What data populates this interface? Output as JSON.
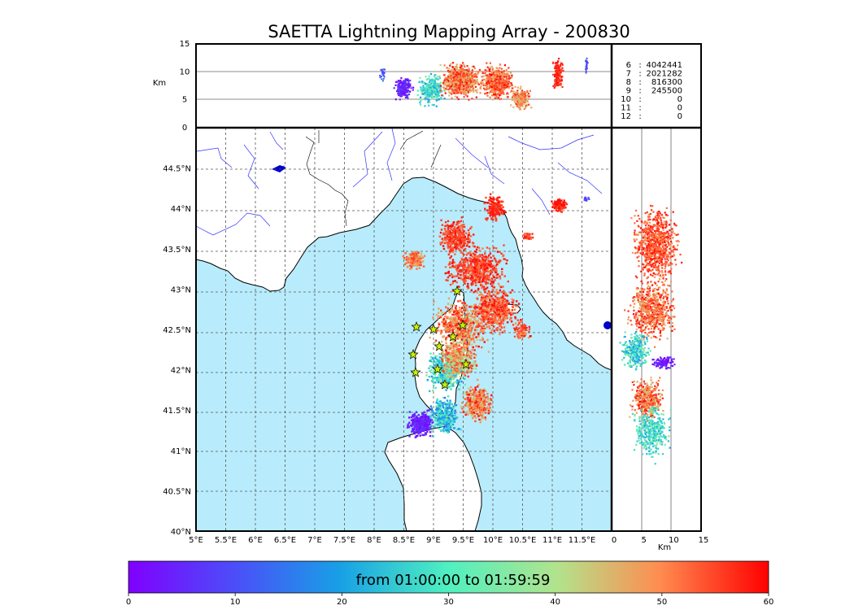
{
  "chart_data": {
    "type": "scatter",
    "title": "SAETTA Lightning Mapping Array - 200830",
    "map": {
      "x_ticks": [
        "5°E",
        "5.5°E",
        "6°E",
        "6.5°E",
        "7°E",
        "7.5°E",
        "8°E",
        "8.5°E",
        "9°E",
        "9.5°E",
        "10°E",
        "10.5°E",
        "11°E",
        "11.5°E"
      ],
      "x_tick_values": [
        5,
        5.5,
        6,
        6.5,
        7,
        7.5,
        8,
        8.5,
        9,
        9.5,
        10,
        10.5,
        11,
        11.5
      ],
      "y_ticks": [
        "40°N",
        "40.5°N",
        "41°N",
        "41.5°N",
        "42°N",
        "42.5°N",
        "43°N",
        "43.5°N",
        "44°N",
        "44.5°N"
      ],
      "y_tick_values": [
        40,
        40.5,
        41,
        41.5,
        42,
        42.5,
        43,
        43.5,
        44,
        44.5
      ],
      "xlim": [
        5,
        12
      ],
      "ylim": [
        40,
        45
      ],
      "grid": true,
      "station_marker": "star"
    },
    "altitude_panel": {
      "ylabel": "Km",
      "y_ticks": [
        "0",
        "5",
        "10",
        "15"
      ],
      "ylim": [
        0,
        15
      ]
    },
    "side_panel": {
      "xlabel": "Km",
      "x_ticks": [
        "0",
        "5",
        "10",
        "15"
      ],
      "xlim": [
        0,
        15
      ]
    },
    "station_counts": [
      {
        "stations": "6",
        "sep": ":",
        "count": "4042441",
        "highlight": false
      },
      {
        "stations": "7",
        "sep": ":",
        "count": "2021282",
        "highlight": true
      },
      {
        "stations": "8",
        "sep": ":",
        "count": "816300",
        "highlight": false
      },
      {
        "stations": "9",
        "sep": ":",
        "count": "245500",
        "highlight": false
      },
      {
        "stations": "10",
        "sep": ":",
        "count": "0",
        "highlight": false
      },
      {
        "stations": "11",
        "sep": ":",
        "count": "0",
        "highlight": false
      },
      {
        "stations": "12",
        "sep": ":",
        "count": "0",
        "highlight": false
      }
    ],
    "colorbar": {
      "label": "from 01:00:00 to 01:59:59",
      "ticks": [
        "0",
        "10",
        "20",
        "30",
        "40",
        "50",
        "60"
      ],
      "tick_values": [
        0,
        10,
        20,
        30,
        40,
        50,
        60
      ],
      "range": [
        0,
        60
      ],
      "colormap": "rainbow"
    },
    "colors": {
      "sea": "#b8ecfc",
      "land": "#ffffff",
      "coast": "#000000",
      "rivers": "#3333ff",
      "grid": "#555555",
      "highlight_text": "#ff0000",
      "station_fill": "#c8f000"
    }
  }
}
